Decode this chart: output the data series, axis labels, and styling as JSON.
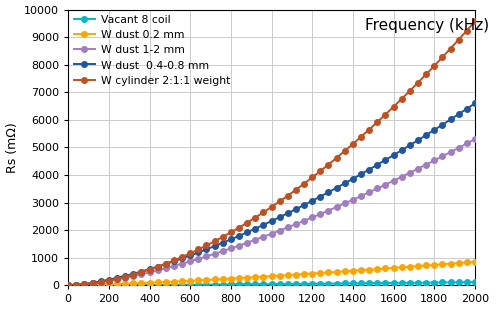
{
  "title": "Frequency (kHz)",
  "ylabel": "Rs (mΩ)",
  "xlim": [
    0,
    2000
  ],
  "ylim": [
    0,
    10000
  ],
  "yticks": [
    0,
    1000,
    2000,
    3000,
    4000,
    5000,
    6000,
    7000,
    8000,
    9000,
    10000
  ],
  "xticks": [
    0,
    200,
    400,
    600,
    800,
    1000,
    1200,
    1400,
    1600,
    1800,
    2000
  ],
  "series": [
    {
      "label": "Vacant 8 coil",
      "color": "#00B8CC",
      "scale": 0.008,
      "exponent": 1.35
    },
    {
      "label": "W dust 0.2 mm",
      "color": "#FFA500",
      "scale": 0.065,
      "exponent": 1.35
    },
    {
      "label": "W dust 1-2 mm",
      "color": "#A07DC0",
      "scale": 0.38,
      "exponent": 1.52
    },
    {
      "label": "W dust  0.4-0.8 mm",
      "color": "#2055A0",
      "scale": 0.28,
      "exponent": 1.52
    },
    {
      "label": "W cylinder 2:1:1 weight",
      "color": "#C05020",
      "scale": 0.012,
      "exponent": 1.95
    }
  ],
  "background_color": "#FFFFFF",
  "grid_color": "#CCCCCC",
  "marker_size": 4,
  "marker_step": 40,
  "linewidth": 1.4,
  "title_fontsize": 11,
  "label_fontsize": 9,
  "tick_fontsize": 8,
  "legend_fontsize": 7.8
}
